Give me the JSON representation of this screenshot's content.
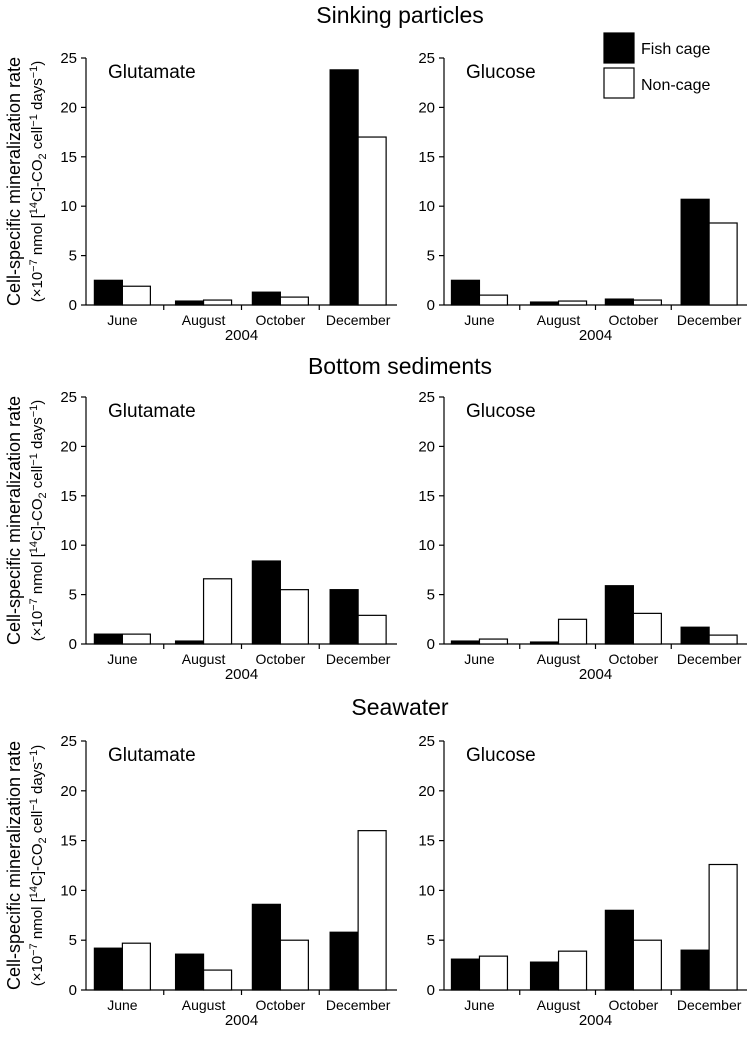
{
  "figure": {
    "sections": [
      {
        "title": "Sinking particles"
      },
      {
        "title": "Bottom sediments"
      },
      {
        "title": "Seawater"
      }
    ],
    "ylabel_line1": "Cell-specific mineralization rate",
    "ylabel_line2_parts": [
      "(×10",
      "−7",
      " nmol [",
      "14",
      "C]-CO",
      "2",
      " cell",
      "−1",
      " days",
      "−1",
      ")"
    ],
    "year_label": "2004",
    "legend": [
      {
        "label": "Fish cage",
        "color": "#000000"
      },
      {
        "label": "Non-cage",
        "color": "#ffffff"
      }
    ]
  },
  "chart_data": [
    {
      "type": "bar",
      "section": "Sinking particles",
      "title": "Glutamate",
      "categories": [
        "June",
        "August",
        "October",
        "December"
      ],
      "xlabel": "2004",
      "ylim": [
        0,
        25
      ],
      "yticks": [
        0,
        5,
        10,
        15,
        20,
        25
      ],
      "series": [
        {
          "name": "Fish cage",
          "values": [
            2.5,
            0.4,
            1.3,
            23.8
          ]
        },
        {
          "name": "Non-cage",
          "values": [
            1.9,
            0.5,
            0.8,
            17.0
          ]
        }
      ]
    },
    {
      "type": "bar",
      "section": "Sinking particles",
      "title": "Glucose",
      "categories": [
        "June",
        "August",
        "October",
        "December"
      ],
      "xlabel": "2004",
      "ylim": [
        0,
        25
      ],
      "yticks": [
        0,
        5,
        10,
        15,
        20,
        25
      ],
      "series": [
        {
          "name": "Fish cage",
          "values": [
            2.5,
            0.3,
            0.6,
            10.7
          ]
        },
        {
          "name": "Non-cage",
          "values": [
            1.0,
            0.4,
            0.5,
            8.3
          ]
        }
      ]
    },
    {
      "type": "bar",
      "section": "Bottom sediments",
      "title": "Glutamate",
      "categories": [
        "June",
        "August",
        "October",
        "December"
      ],
      "xlabel": "2004",
      "ylim": [
        0,
        25
      ],
      "yticks": [
        0,
        5,
        10,
        15,
        20,
        25
      ],
      "series": [
        {
          "name": "Fish cage",
          "values": [
            1.0,
            0.3,
            8.4,
            5.5
          ]
        },
        {
          "name": "Non-cage",
          "values": [
            1.0,
            6.6,
            5.5,
            2.9
          ]
        }
      ]
    },
    {
      "type": "bar",
      "section": "Bottom sediments",
      "title": "Glucose",
      "categories": [
        "June",
        "August",
        "October",
        "December"
      ],
      "xlabel": "2004",
      "ylim": [
        0,
        25
      ],
      "yticks": [
        0,
        5,
        10,
        15,
        20,
        25
      ],
      "series": [
        {
          "name": "Fish cage",
          "values": [
            0.3,
            0.2,
            5.9,
            1.7
          ]
        },
        {
          "name": "Non-cage",
          "values": [
            0.5,
            2.5,
            3.1,
            0.9
          ]
        }
      ]
    },
    {
      "type": "bar",
      "section": "Seawater",
      "title": "Glutamate",
      "categories": [
        "June",
        "August",
        "October",
        "December"
      ],
      "xlabel": "2004",
      "ylim": [
        0,
        25
      ],
      "yticks": [
        0,
        5,
        10,
        15,
        20,
        25
      ],
      "series": [
        {
          "name": "Fish cage",
          "values": [
            4.2,
            3.6,
            8.6,
            5.8
          ]
        },
        {
          "name": "Non-cage",
          "values": [
            4.7,
            2.0,
            5.0,
            16.0
          ]
        }
      ]
    },
    {
      "type": "bar",
      "section": "Seawater",
      "title": "Glucose",
      "categories": [
        "June",
        "August",
        "October",
        "December"
      ],
      "xlabel": "2004",
      "ylim": [
        0,
        25
      ],
      "yticks": [
        0,
        5,
        10,
        15,
        20,
        25
      ],
      "series": [
        {
          "name": "Fish cage",
          "values": [
            3.1,
            2.8,
            8.0,
            4.0
          ]
        },
        {
          "name": "Non-cage",
          "values": [
            3.4,
            3.9,
            5.0,
            12.6
          ]
        }
      ]
    }
  ]
}
